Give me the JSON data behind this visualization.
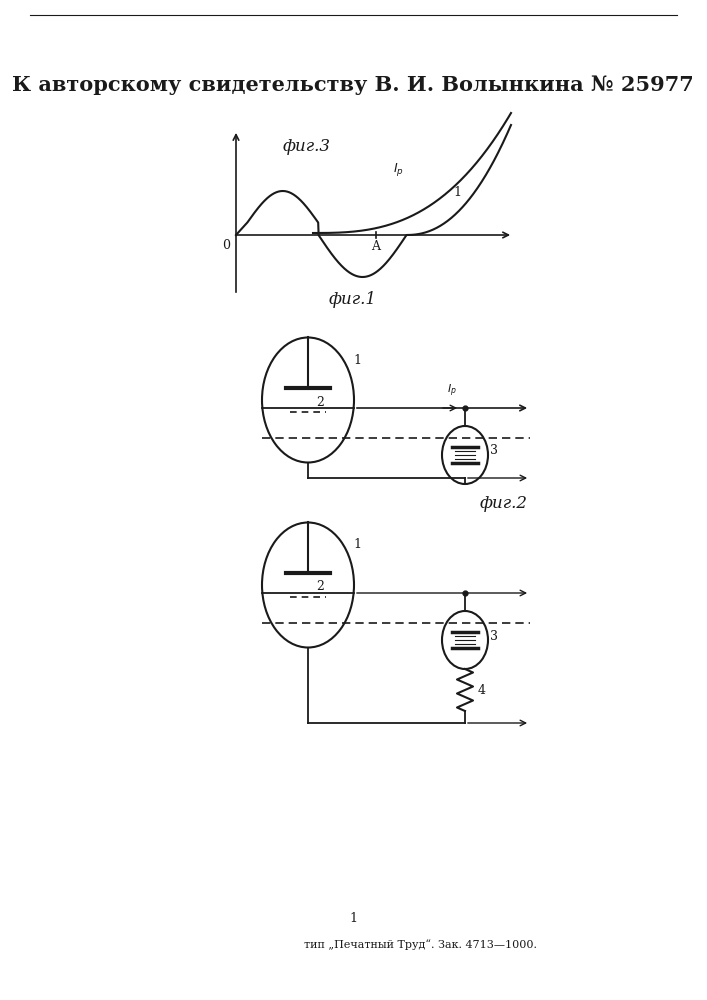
{
  "title_text": "К авторскому свидетельству В. И. Волынкина № 25977",
  "fig3_label": "фиг.3",
  "fig1_label": "фиг.1",
  "fig2_label": "фиг.2",
  "footer_text": "тип „Печатный Труд“. Зак. 4713—1000.",
  "bg_color": "#ffffff",
  "line_color": "#1a1a1a",
  "title_fontsize": 15,
  "label_fontsize": 12
}
